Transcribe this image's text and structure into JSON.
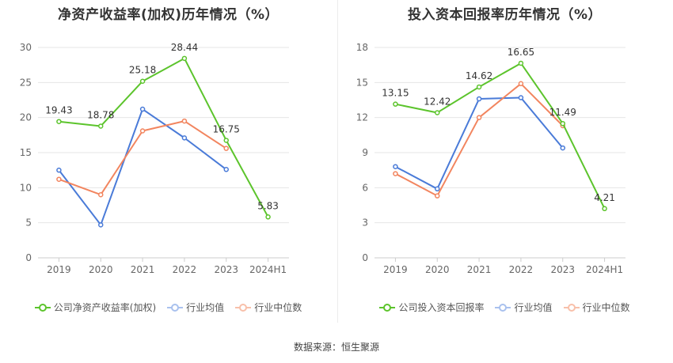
{
  "source_text": "数据来源：恒生聚源",
  "legend_items": [
    "行业均值",
    "行业中位数"
  ],
  "colors": {
    "company": "#5cc42c",
    "average": "#4a7bd8",
    "median": "#f2855f",
    "grid": "#e6e6e6",
    "axis": "#cccccc"
  },
  "chart_data": [
    {
      "type": "line",
      "title": "净资产收益率(加权)历年情况（%）",
      "categories": [
        "2019",
        "2020",
        "2021",
        "2022",
        "2023",
        "2024H1"
      ],
      "ylim": [
        0,
        30
      ],
      "yticks": [
        0,
        5,
        10,
        15,
        20,
        25,
        30
      ],
      "grid": true,
      "legend_position": "bottom",
      "series": [
        {
          "name": "公司净资产收益率(加权)",
          "color_key": "company",
          "values": [
            19.43,
            18.78,
            25.18,
            28.44,
            16.75,
            5.83
          ],
          "labels": [
            "19.43",
            "18.78",
            "25.18",
            "28.44",
            "16.75",
            "5.83"
          ]
        },
        {
          "name": "行业均值",
          "color_key": "average",
          "values": [
            12.5,
            4.7,
            21.2,
            17.1,
            12.6,
            null
          ]
        },
        {
          "name": "行业中位数",
          "color_key": "median",
          "values": [
            11.2,
            9.0,
            18.1,
            19.5,
            15.6,
            null
          ]
        }
      ]
    },
    {
      "type": "line",
      "title": "投入资本回报率历年情况（%）",
      "categories": [
        "2019",
        "2020",
        "2021",
        "2022",
        "2023",
        "2024H1"
      ],
      "ylim": [
        0,
        18
      ],
      "yticks": [
        0,
        3,
        6,
        9,
        12,
        15,
        18
      ],
      "grid": true,
      "legend_position": "bottom",
      "series": [
        {
          "name": "公司投入资本回报率",
          "color_key": "company",
          "values": [
            13.15,
            12.42,
            14.62,
            16.65,
            11.49,
            4.21
          ],
          "labels": [
            "13.15",
            "12.42",
            "14.62",
            "16.65",
            "11.49",
            "4.21"
          ]
        },
        {
          "name": "行业均值",
          "color_key": "average",
          "values": [
            7.8,
            5.9,
            13.6,
            13.7,
            9.4,
            null
          ]
        },
        {
          "name": "行业中位数",
          "color_key": "median",
          "values": [
            7.2,
            5.3,
            12.0,
            14.9,
            11.3,
            null
          ]
        }
      ]
    }
  ]
}
